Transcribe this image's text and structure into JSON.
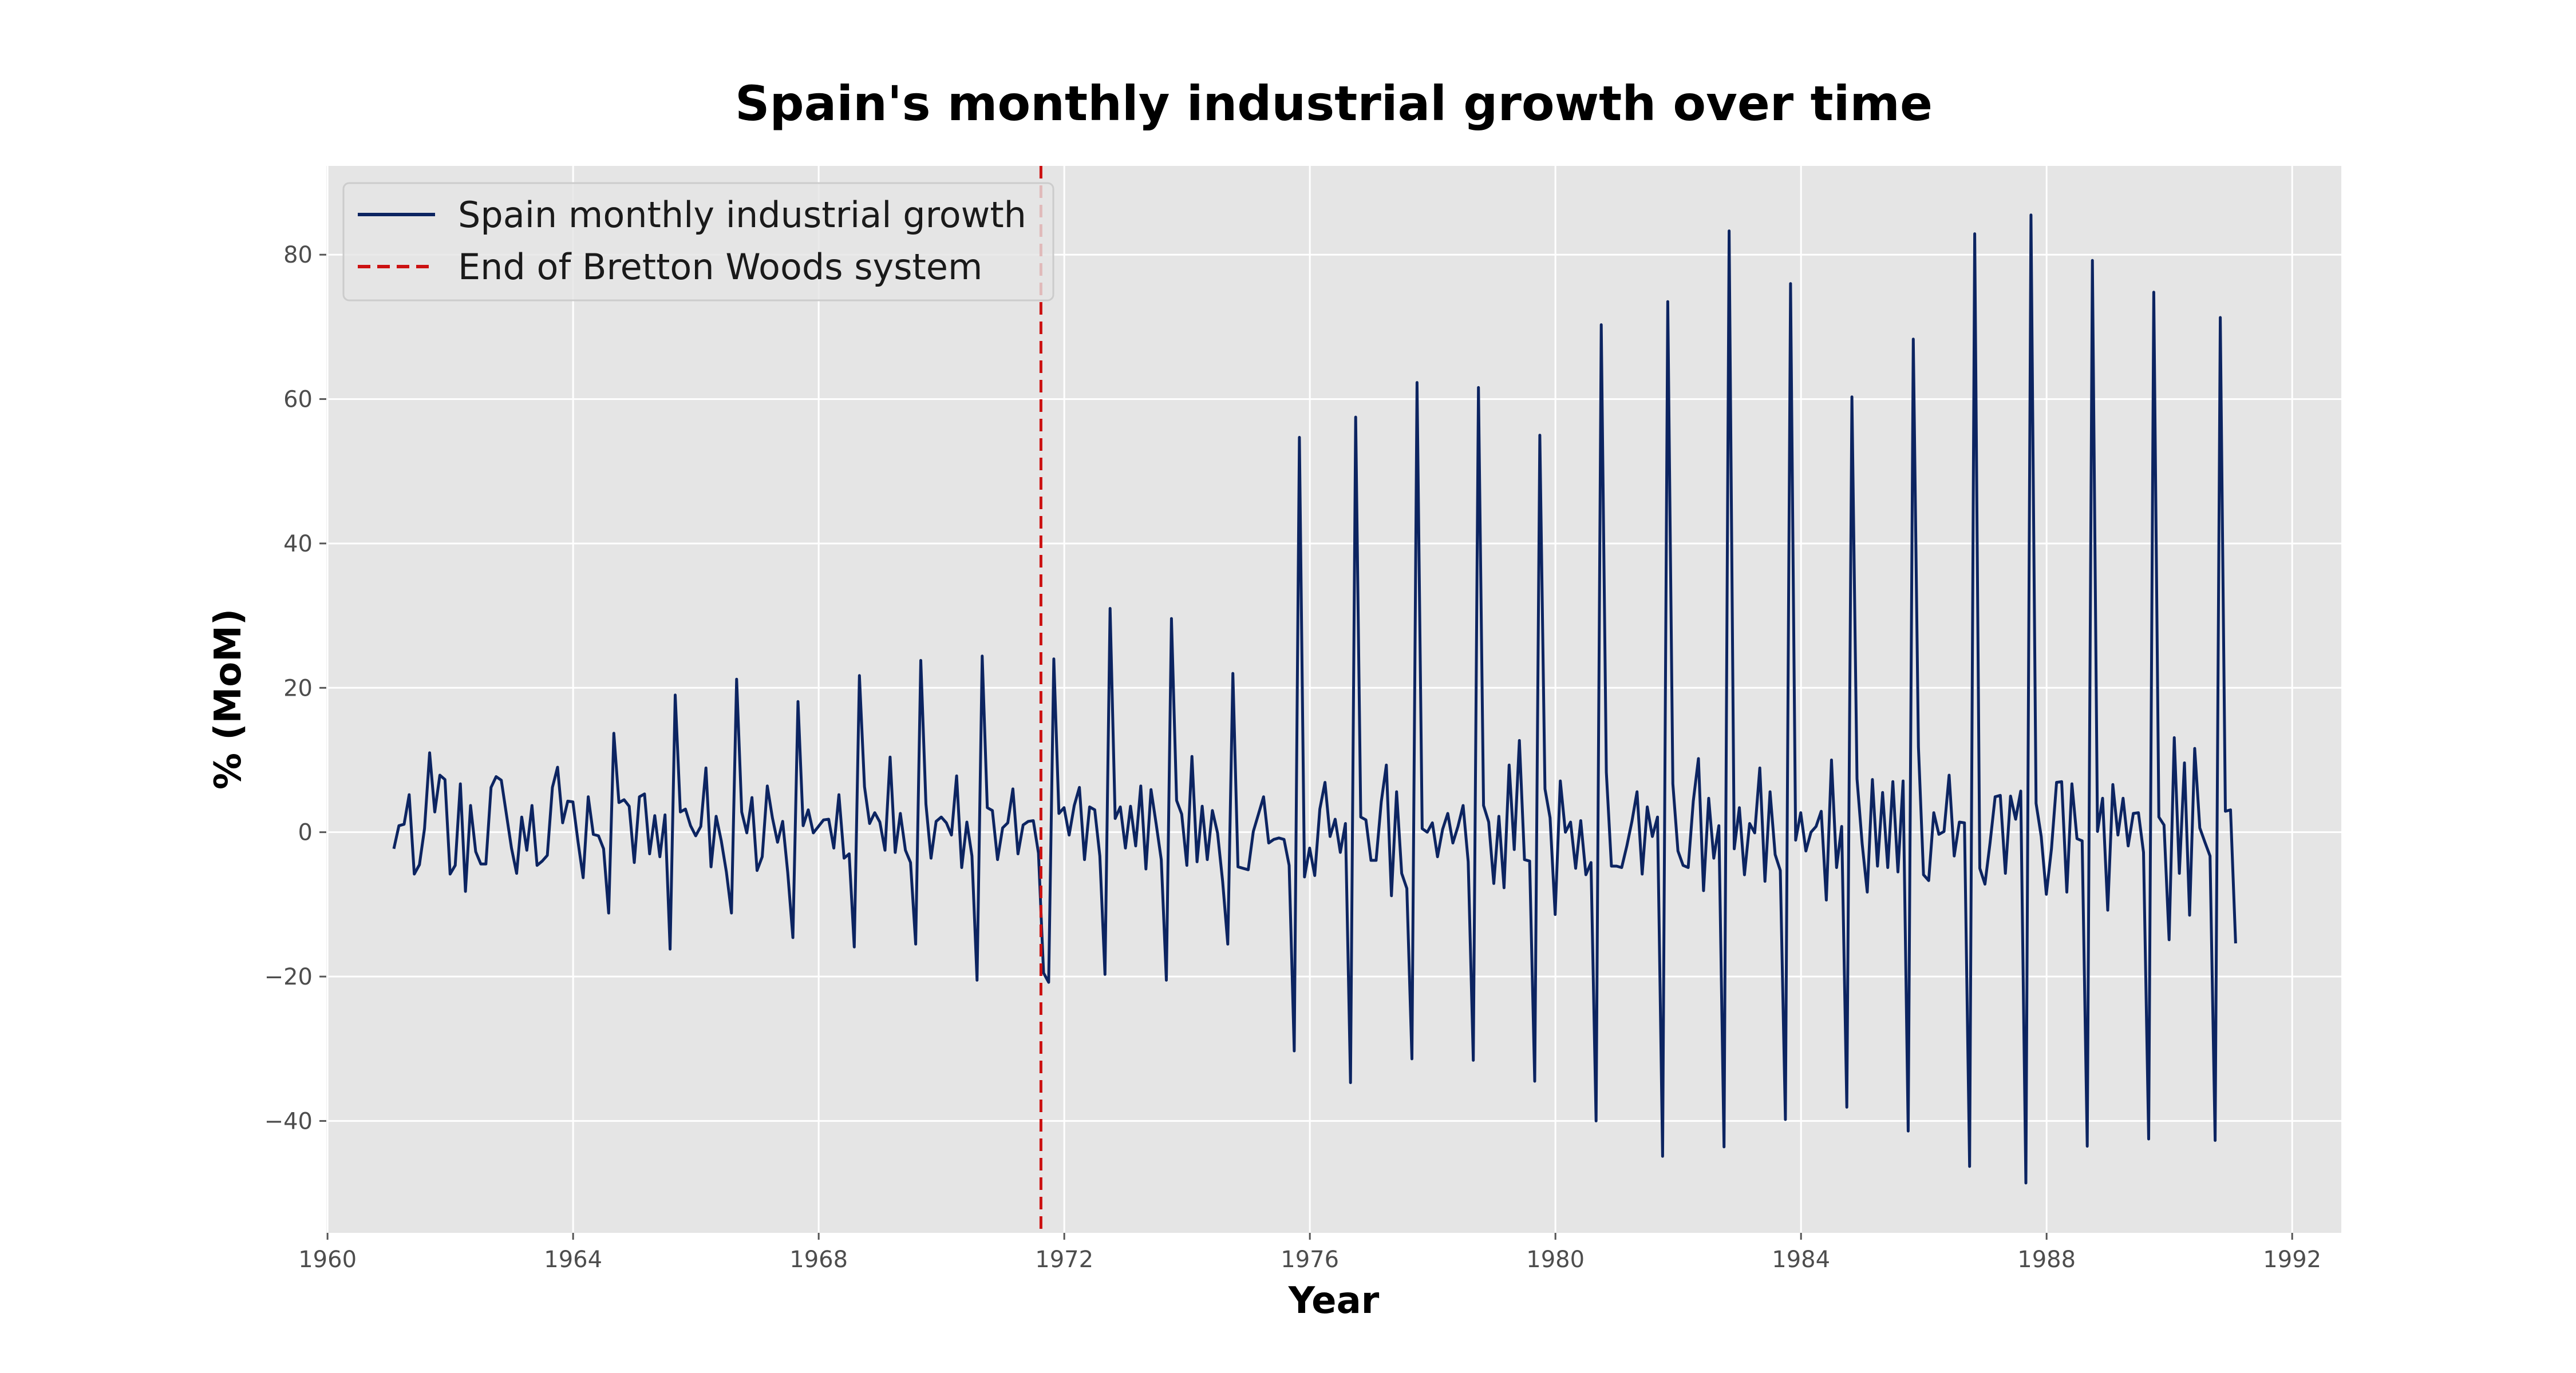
{
  "chart_data": {
    "type": "line",
    "title": "Spain's monthly industrial growth over time",
    "xlabel": "Year",
    "ylabel": "% (MoM)",
    "xlim": [
      1959.98,
      1992.8
    ],
    "ylim": [
      -55.5,
      92.3
    ],
    "x_ticks": [
      {
        "value": 1960,
        "label": "1960"
      },
      {
        "value": 1964,
        "label": "1964"
      },
      {
        "value": 1968,
        "label": "1968"
      },
      {
        "value": 1972,
        "label": "1972"
      },
      {
        "value": 1976,
        "label": "1976"
      },
      {
        "value": 1980,
        "label": "1980"
      },
      {
        "value": 1984,
        "label": "1984"
      },
      {
        "value": 1988,
        "label": "1988"
      },
      {
        "value": 1992,
        "label": "1992"
      }
    ],
    "y_ticks": [
      {
        "value": -40,
        "label": "−40"
      },
      {
        "value": -20,
        "label": "−20"
      },
      {
        "value": 0,
        "label": "0"
      },
      {
        "value": 20,
        "label": "20"
      },
      {
        "value": 40,
        "label": "40"
      },
      {
        "value": 60,
        "label": "60"
      },
      {
        "value": 80,
        "label": "80"
      }
    ],
    "grid": true,
    "legend_position": "upper-left",
    "background_color": "#e5e5e5",
    "series": [
      {
        "name": "Spain monthly industrial growth",
        "color": "#0c2461",
        "style": "solid",
        "start_year": 1961.08,
        "step_years": 0.08333,
        "values": [
          -2.3,
          0.9,
          1.1,
          5.2,
          -5.8,
          -4.5,
          0.5,
          11.0,
          2.8,
          7.9,
          7.3,
          -5.8,
          -4.6,
          6.7,
          -8.2,
          3.7,
          -2.7,
          -4.4,
          -4.4,
          6.2,
          7.7,
          7.2,
          2.5,
          -2.2,
          -5.7,
          2.1,
          -2.5,
          3.7,
          -4.6,
          -4.0,
          -3.2,
          6.2,
          9.0,
          1.3,
          4.3,
          4.2,
          -1.3,
          -6.3,
          4.9,
          -0.3,
          -0.5,
          -2.3,
          -11.2,
          13.7,
          4.1,
          4.5,
          3.6,
          -4.2,
          4.9,
          5.3,
          -3.0,
          2.3,
          -3.4,
          2.4,
          -16.2,
          19.0,
          2.8,
          3.2,
          0.9,
          -0.5,
          0.8,
          8.9,
          -4.8,
          2.2,
          -1.2,
          -5.5,
          -11.2,
          21.2,
          2.8,
          -0.1,
          4.8,
          -5.3,
          -3.4,
          6.4,
          2.0,
          -1.4,
          1.5,
          -5.6,
          -14.6,
          18.1,
          0.9,
          3.1,
          -0.1,
          0.8,
          1.7,
          1.8,
          -2.2,
          5.2,
          -3.6,
          -3.0,
          -15.9,
          21.7,
          6.3,
          1.2,
          2.7,
          1.4,
          -2.5,
          10.4,
          -2.8,
          2.6,
          -2.5,
          -4.2,
          -15.5,
          23.8,
          3.9,
          -3.6,
          1.5,
          2.1,
          1.3,
          -0.4,
          7.8,
          -4.9,
          1.4,
          -3.3,
          -20.5,
          24.4,
          3.4,
          3.0,
          -3.8,
          0.6,
          1.3,
          6.0,
          -3.0,
          1.0,
          1.5,
          1.6,
          -2.9,
          -19.5,
          -20.8,
          24.0,
          2.6,
          3.4,
          -0.4,
          3.7,
          6.2,
          -3.8,
          3.5,
          3.1,
          -3.3,
          -19.7,
          31.0,
          1.9,
          3.5,
          -2.2,
          3.6,
          -1.9,
          6.4,
          -5.1,
          5.9,
          1.2,
          -3.8,
          -20.5,
          29.6,
          4.4,
          2.5,
          -4.6,
          10.5,
          -4.1,
          3.6,
          -3.8,
          3.0,
          -0.1,
          -6.8,
          -15.5,
          22.0,
          -4.8,
          -5.0,
          -5.2,
          0.1,
          2.5,
          4.9,
          -1.5,
          -1.0,
          -0.8,
          -1.0,
          -4.6,
          -30.3,
          54.7,
          -6.2,
          -2.2,
          -6.0,
          3.2,
          6.9,
          -0.6,
          1.8,
          -2.8,
          1.2,
          -34.7,
          57.5,
          2.1,
          1.7,
          -3.9,
          -3.9,
          4.2,
          9.3,
          -8.8,
          5.6,
          -5.7,
          -7.8,
          -31.4,
          62.3,
          0.5,
          0.0,
          1.3,
          -3.4,
          0.4,
          2.6,
          -1.5,
          0.8,
          3.7,
          -4.1,
          -31.6,
          61.6,
          3.7,
          1.4,
          -7.1,
          2.2,
          -7.7,
          9.3,
          -2.4,
          12.7,
          -3.8,
          -4.0,
          -34.5,
          55.0,
          6.0,
          2.0,
          -11.4,
          7.1,
          0.0,
          1.4,
          -5.0,
          1.6,
          -5.9,
          -4.2,
          -40.0,
          70.3,
          8.3,
          -4.7,
          -4.7,
          -4.9,
          -1.9,
          1.5,
          5.6,
          -5.8,
          3.5,
          -0.6,
          2.1,
          -44.9,
          73.5,
          6.7,
          -2.6,
          -4.6,
          -4.9,
          4.3,
          10.2,
          -8.1,
          4.7,
          -3.6,
          0.9,
          -43.6,
          83.3,
          -2.3,
          3.4,
          -5.9,
          1.2,
          -0.1,
          8.9,
          -6.8,
          5.6,
          -3.1,
          -5.3,
          -39.8,
          76.0,
          -1.1,
          2.7,
          -2.6,
          0.0,
          0.8,
          2.9,
          -9.4,
          10.0,
          -4.9,
          0.8,
          -38.1,
          60.3,
          7.4,
          -1.6,
          -8.3,
          7.3,
          -4.7,
          5.5,
          -4.9,
          7.0,
          -5.5,
          7.1,
          -41.4,
          68.3,
          11.8,
          -5.9,
          -6.7,
          2.7,
          -0.3,
          0.1,
          7.9,
          -3.3,
          1.4,
          1.3,
          -46.3,
          82.9,
          -5.0,
          -7.2,
          -1.5,
          4.9,
          5.1,
          -5.7,
          5.0,
          1.8,
          5.7,
          -48.6,
          85.5,
          4.0,
          -0.6,
          -8.6,
          -2.3,
          6.9,
          7.0,
          -8.3,
          6.7,
          -0.9,
          -1.2,
          -43.5,
          79.2,
          0.1,
          4.7,
          -10.8,
          6.6,
          -0.4,
          4.7,
          -1.9,
          2.6,
          2.7,
          -2.8,
          -42.5,
          74.8,
          2.1,
          1.0,
          -14.9,
          13.1,
          -5.7,
          9.6,
          -11.5,
          11.6,
          0.6,
          -1.4,
          -3.3,
          -42.7,
          71.3,
          2.9,
          3.1,
          -15.4
        ]
      },
      {
        "name": "End of Bretton Woods system",
        "color": "#cc1111",
        "style": "dashed",
        "x": 1971.62
      }
    ]
  }
}
